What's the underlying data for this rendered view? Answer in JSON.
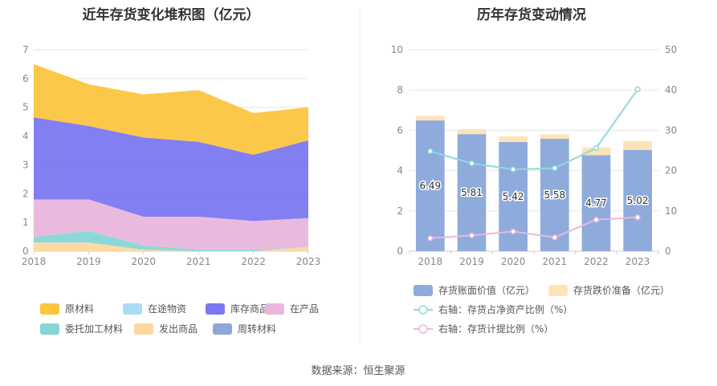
{
  "chart_data": [
    {
      "type": "area",
      "stacked": true,
      "title": "近年存货变化堆积图（亿元）",
      "categories": [
        "2018",
        "2019",
        "2020",
        "2021",
        "2022",
        "2023"
      ],
      "ylim": [
        0,
        7
      ],
      "yticks": [
        "0",
        "1",
        "2",
        "3",
        "4",
        "5",
        "6",
        "7"
      ],
      "series": [
        {
          "name": "原材料",
          "color": "#fcc53f",
          "values": [
            1.85,
            1.45,
            1.5,
            1.8,
            1.45,
            1.15
          ]
        },
        {
          "name": "在途物资",
          "color": "#a9dcf5",
          "values": [
            0,
            0,
            0,
            0,
            0,
            0
          ]
        },
        {
          "name": "库存商品",
          "color": "#7b78f2",
          "values": [
            2.85,
            2.55,
            2.75,
            2.6,
            2.3,
            2.7
          ]
        },
        {
          "name": "在产品",
          "color": "#e9b6dc",
          "values": [
            1.3,
            1.1,
            1.0,
            1.15,
            1.0,
            1.0
          ]
        },
        {
          "name": "委托加工材料",
          "color": "#86d6d6",
          "values": [
            0.2,
            0.4,
            0.15,
            0.05,
            0.05,
            0.0
          ]
        },
        {
          "name": "发出商品",
          "color": "#fed79f",
          "values": [
            0.3,
            0.3,
            0.05,
            0.0,
            0.0,
            0.15
          ]
        },
        {
          "name": "周转材料",
          "color": "#8ea6d9",
          "values": [
            0,
            0,
            0,
            0,
            0,
            0
          ]
        }
      ]
    },
    {
      "type": "bar",
      "title": "历年存货变动情况",
      "categories": [
        "2018",
        "2019",
        "2020",
        "2021",
        "2022",
        "2023"
      ],
      "ylim": [
        0,
        10
      ],
      "yticks": [
        "0",
        "2",
        "4",
        "6",
        "8",
        "10"
      ],
      "y2lim": [
        0,
        50
      ],
      "y2ticks": [
        "0",
        "10",
        "20",
        "30",
        "40",
        "50"
      ],
      "bars": [
        {
          "name": "存货账面价值（亿元）",
          "color": "#8eabdb",
          "values": [
            6.49,
            5.81,
            5.42,
            5.58,
            4.77,
            5.02
          ],
          "labels": [
            "6.49",
            "5.81",
            "5.42",
            "5.58",
            "4.77",
            "5.02"
          ]
        },
        {
          "name": "存货跌价准备（亿元）",
          "color": "#fde3b7",
          "values": [
            0.22,
            0.25,
            0.28,
            0.22,
            0.38,
            0.45
          ]
        }
      ],
      "lines": [
        {
          "name": "右轴：存货占净资产比例（%）",
          "color": "#8fd8dd",
          "values": [
            24.8,
            21.8,
            20.3,
            20.6,
            25.6,
            40.2
          ]
        },
        {
          "name": "右轴：存货计提比例（%）",
          "color": "#e8b8df",
          "values": [
            3.2,
            3.9,
            4.9,
            3.4,
            7.8,
            8.4
          ]
        }
      ]
    }
  ],
  "source": "数据来源：恒生聚源"
}
